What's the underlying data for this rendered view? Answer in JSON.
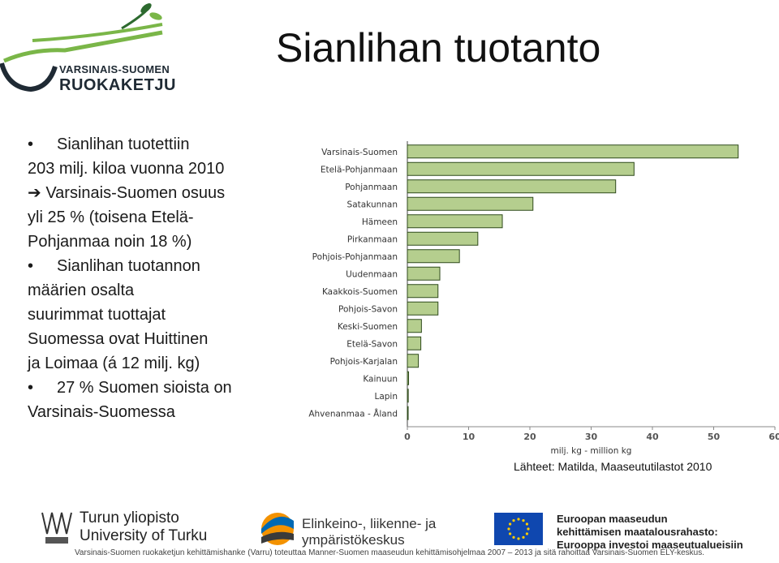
{
  "logo": {
    "line1": "VARSINAIS-SUOMEN",
    "line2": "RUOKAKETJU"
  },
  "title": "Sianlihan tuotanto",
  "bullets": {
    "b1_l1": "Sianlihan tuotettiin",
    "b1_l2": "203 milj. kiloa vuonna 2010",
    "b1_l3": "Varsinais-Suomen osuus",
    "b1_l4": "yli 25 % (toisena Etelä-",
    "b1_l5": "Pohjanmaa noin 18 %)",
    "b2_l1": "Sianlihan tuotannon",
    "b2_l2": "määrien osalta",
    "b2_l3": "suurimmat tuottajat",
    "b2_l4": "Suomessa ovat Huittinen",
    "b2_l5": "ja Loimaa (á 12 milj. kg)",
    "b3_l1": "27 % Suomen sioista on",
    "b3_l2": "Varsinais-Suomessa"
  },
  "chart_data": {
    "type": "bar",
    "orientation": "horizontal",
    "categories": [
      "Varsinais-Suomen",
      "Etelä-Pohjanmaan",
      "Pohjanmaan",
      "Satakunnan",
      "Hämeen",
      "Pirkanmaan",
      "Pohjois-Pohjanmaan",
      "Uudenmaan",
      "Kaakkois-Suomen",
      "Pohjois-Savon",
      "Keski-Suomen",
      "Etelä-Savon",
      "Pohjois-Karjalan",
      "Kainuun",
      "Lapin",
      "Ahvenanmaa - Åland"
    ],
    "values": [
      54,
      37,
      34,
      20.5,
      15.5,
      11.5,
      8.5,
      5.3,
      5.0,
      5.0,
      2.3,
      2.2,
      1.8,
      0.2,
      0.15,
      0.1
    ],
    "xlabel": "milj. kg - million kg",
    "xlim": [
      0,
      60
    ],
    "xticks": [
      0,
      10,
      20,
      30,
      40,
      50,
      60
    ],
    "bar_color": "#b5ce8e",
    "bar_edge": "#2f4a1c",
    "grid": false
  },
  "source": "Lähteet: Matilda, Maaseututilastot 2010",
  "footer": {
    "uni1": "Turun yliopisto",
    "uni2": "University of Turku",
    "ely1": "Elinkeino-, liikenne- ja",
    "ely2": "ympäristökeskus",
    "eu1": "Euroopan maaseudun",
    "eu2": "kehittämisen maatalousrahasto:",
    "eu3": "Eurooppa investoi maaseutualueisiin",
    "note": "Varsinais-Suomen ruokaketjun kehittämishanke (Varru) toteuttaa Manner-Suomen maaseudun kehittämisohjelmaa 2007 – 2013 ja sitä rahoittaa Varsinais-Suomen ELY-keskus."
  }
}
